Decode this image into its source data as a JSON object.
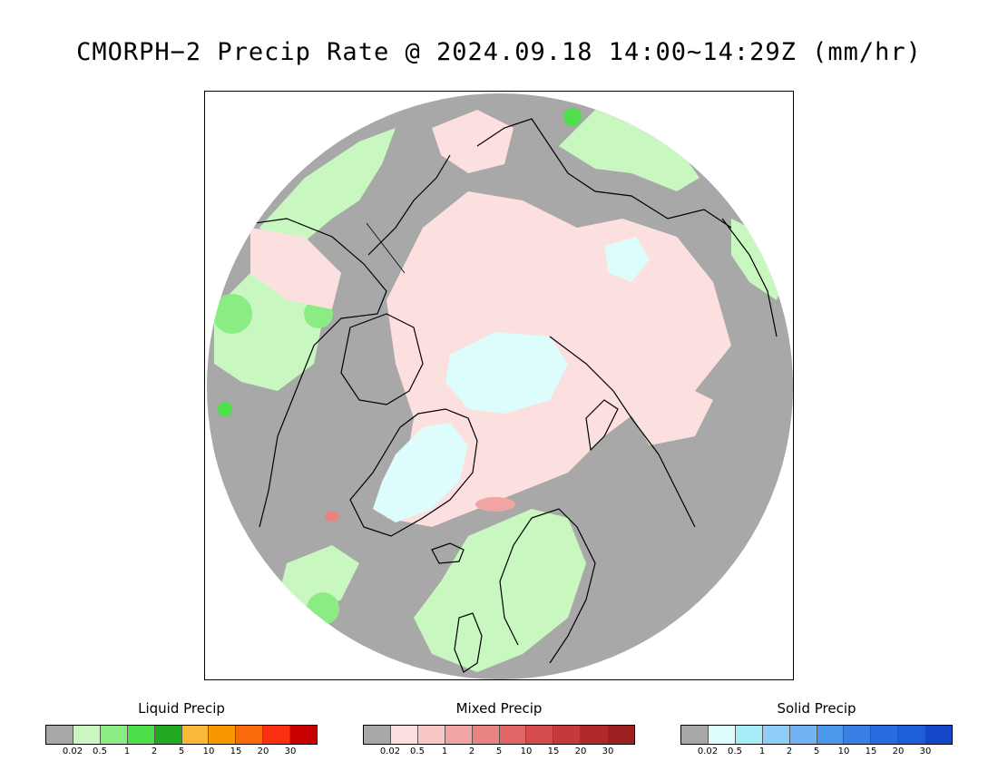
{
  "title": "CMORPH−2 Precip Rate @ 2024.09.18 14:00~14:29Z (mm/hr)",
  "map": {
    "projection": "north-polar-stereographic",
    "background_color": "#a8a8a8",
    "coast_color": "#000000"
  },
  "legends": [
    {
      "id": "liquid",
      "title": "Liquid Precip",
      "colors": [
        "#a8a8a8",
        "#c8f8c0",
        "#8cec84",
        "#4ee04a",
        "#22aa22",
        "#f8b838",
        "#f89800",
        "#f86a0a",
        "#f83010",
        "#c80000"
      ],
      "ticks": [
        "0.02",
        "0.5",
        "1",
        "2",
        "5",
        "10",
        "15",
        "20",
        "30"
      ]
    },
    {
      "id": "mixed",
      "title": "Mixed Precip",
      "colors": [
        "#a8a8a8",
        "#fce0e0",
        "#f8c8c8",
        "#f0a4a4",
        "#e88484",
        "#e06666",
        "#d44c4c",
        "#c43a3a",
        "#b02a2a",
        "#9c2020"
      ],
      "ticks": [
        "0.02",
        "0.5",
        "1",
        "2",
        "5",
        "10",
        "15",
        "20",
        "30"
      ]
    },
    {
      "id": "solid",
      "title": "Solid Precip",
      "colors": [
        "#a8a8a8",
        "#ddfcfc",
        "#a8ecf8",
        "#90cef8",
        "#70b4f4",
        "#4e98ec",
        "#3a80e4",
        "#2a6ce0",
        "#1e5ed8",
        "#1448c8"
      ],
      "ticks": [
        "0.02",
        "0.5",
        "1",
        "2",
        "5",
        "10",
        "15",
        "20",
        "30"
      ]
    }
  ]
}
